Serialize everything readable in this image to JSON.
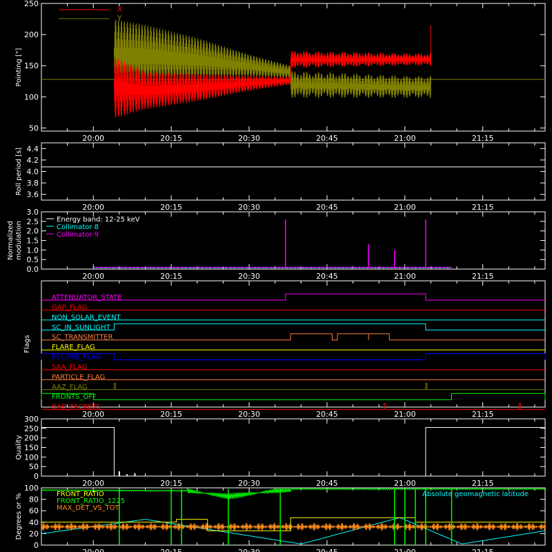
{
  "colors": {
    "background": "#000000",
    "axes": "#ffffff",
    "x_red": "#ff0000",
    "y_olive": "#808000",
    "white": "#ffffff",
    "cyan": "#00ffff",
    "magenta": "#ff00ff",
    "green": "#00ff00",
    "yellow": "#ffff00",
    "orange": "#ff8c1a",
    "blue": "#0000ff",
    "flag_orange": "#ff7f3f"
  },
  "time_axis": {
    "start": "19:50",
    "end": "21:27",
    "tick_labels": [
      "20:00",
      "20:15",
      "20:30",
      "20:45",
      "21:00",
      "21:15"
    ]
  },
  "chart_data": [
    {
      "type": "line",
      "ylabel": "Pointing [\"]",
      "ylim": [
        45,
        250
      ],
      "yticks": [
        "50",
        "100",
        "150",
        "200",
        "250"
      ],
      "legend_placement": "top-left",
      "series": [
        {
          "name": "X",
          "color": "#ff0000",
          "x": [
            "20:04",
            "20:10",
            "20:20",
            "20:30",
            "20:38",
            "20:38",
            "20:50",
            "21:00",
            "21:05"
          ],
          "center": [
            115,
            110,
            115,
            122,
            126,
            160,
            160,
            160,
            160
          ],
          "amplitude": [
            50,
            30,
            22,
            12,
            6,
            14,
            12,
            10,
            10
          ]
        },
        {
          "name": "Y",
          "color": "#808000",
          "x": [
            "20:04",
            "20:10",
            "20:20",
            "20:30",
            "20:38",
            "20:38",
            "20:50",
            "21:00",
            "21:05"
          ],
          "center": [
            165,
            166,
            160,
            150,
            140,
            120,
            118,
            116,
            116
          ],
          "amplitude": [
            60,
            50,
            35,
            18,
            10,
            22,
            20,
            18,
            18
          ]
        }
      ],
      "baseline": {
        "color": "#808000",
        "value": 128
      }
    },
    {
      "type": "line",
      "ylabel": "Roll period [s]",
      "ylim": [
        3.5,
        4.5
      ],
      "yticks": [
        "3.6",
        "3.8",
        "4.0",
        "4.2",
        "4.4"
      ],
      "series": [
        {
          "color": "#ffffff",
          "x": [
            "19:50",
            "21:27"
          ],
          "values": [
            4.08,
            4.08
          ]
        }
      ]
    },
    {
      "type": "line",
      "ylabel": "Normalized modulation",
      "ylim": [
        0,
        3
      ],
      "yticks": [
        "0.0",
        "0.5",
        "1.0",
        "1.5",
        "2.0",
        "2.5",
        "3.0"
      ],
      "legend": [
        "Energy band: 12-25 keV",
        "Collimator 8",
        "Collimator 9"
      ],
      "legend_colors": [
        "#ffffff",
        "#00ffff",
        "#ff00ff"
      ],
      "legend_placement": "top-left",
      "span": [
        "20:00",
        "21:09"
      ],
      "spikes": [
        {
          "x": "20:37",
          "value": 2.6
        },
        {
          "x": "20:53",
          "value": 1.3
        },
        {
          "x": "20:58",
          "value": 1.0
        },
        {
          "x": "21:04",
          "value": 2.6
        }
      ]
    },
    {
      "type": "line",
      "ylabel": "Flags",
      "flags": [
        {
          "label": "ATTENUATOR_STATE",
          "color": "#ff00ff",
          "high": [
            [
              "20:37",
              "21:04"
            ]
          ]
        },
        {
          "label": "GAP_FLAG",
          "color": "#ff0000",
          "high": []
        },
        {
          "label": "NON_SOLAR_EVENT",
          "color": "#00ffff",
          "high": []
        },
        {
          "label": "SC_IN_SUNLIGHT",
          "color": "#00ffff",
          "high": [
            [
              "20:04",
              "21:04"
            ]
          ]
        },
        {
          "label": "SC_TRANSMITTER",
          "color": "#ff7f3f",
          "high": [
            [
              "20:38",
              "20:46"
            ],
            [
              "20:47",
              "20:53"
            ],
            [
              "20:53",
              "20:57"
            ]
          ]
        },
        {
          "label": "FLARE_FLAG",
          "color": "#ffff00",
          "high": []
        },
        {
          "label": "ECLIPSE_FLAG",
          "color": "#0000ff",
          "high": [
            [
              "19:50",
              "20:04"
            ],
            [
              "21:04",
              "21:27"
            ]
          ]
        },
        {
          "label": "SAA_FLAG",
          "color": "#ff0000",
          "high": []
        },
        {
          "label": "PARTICLE_FLAG",
          "color": "#ff7f3f",
          "high": []
        },
        {
          "label": "AAZ_FLAG",
          "color": "#808000",
          "high": [
            [
              "20:04",
              "20:04"
            ],
            [
              "21:04",
              "21:04"
            ]
          ]
        },
        {
          "label": "FRONTS_OFF",
          "color": "#00ff00",
          "high": [
            [
              "19:50",
              "20:00"
            ],
            [
              "21:09",
              "21:27"
            ]
          ]
        },
        {
          "label": "BAD_PACKETS",
          "color": "#ff0000",
          "high": [
            [
              "20:56",
              "20:56"
            ],
            [
              "21:22",
              "21:22"
            ]
          ]
        }
      ]
    },
    {
      "type": "line",
      "ylabel": "Quality",
      "ylim": [
        0,
        300
      ],
      "yticks": [
        "0",
        "50",
        "100",
        "150",
        "200",
        "250",
        "300"
      ],
      "series": [
        {
          "color": "#ffffff",
          "x": [
            "19:50",
            "20:04",
            "20:04",
            "21:04",
            "21:04",
            "21:27"
          ],
          "values": [
            255,
            255,
            0,
            0,
            255,
            255
          ]
        }
      ]
    },
    {
      "type": "line",
      "ylabel": "Degrees or %",
      "ylim": [
        0,
        100
      ],
      "yticks": [
        "0",
        "20",
        "40",
        "60",
        "80",
        "100"
      ],
      "legend": [
        "FRONT_RATIO",
        "FRONT_RATIO_1225",
        "MAX_DET_VS_TOT"
      ],
      "legend_colors": [
        "#ffff00",
        "#00ff00",
        "#ff8c1a"
      ],
      "legend_placement": "top-left",
      "annotation": "Absolute geomagnetic latitude",
      "annotation_color": "#00ffff",
      "series": [
        {
          "name": "FRONT_RATIO",
          "color": "#ffff00",
          "x": [
            "19:50",
            "20:16",
            "20:16",
            "20:22",
            "20:22",
            "20:38",
            "20:38",
            "21:02",
            "21:02",
            "21:27"
          ],
          "values": [
            40,
            40,
            45,
            45,
            25,
            25,
            48,
            48,
            40,
            40
          ]
        },
        {
          "name": "FRONT_RATIO_1225",
          "color": "#00ff00",
          "x": [
            "19:50",
            "20:15",
            "20:18",
            "20:26",
            "20:38",
            "21:02",
            "21:09",
            "21:27"
          ],
          "values": [
            96,
            95,
            95,
            85,
            98,
            98,
            98,
            98
          ]
        },
        {
          "name": "MAX_DET_VS_TOT",
          "color": "#ff8c1a",
          "x": [
            "19:50",
            "21:27"
          ],
          "values": [
            32,
            32
          ]
        },
        {
          "name": "Absolute geomagnetic latitude",
          "color": "#00ffff",
          "x": [
            "19:50",
            "20:10",
            "20:40",
            "20:59",
            "21:11",
            "21:27"
          ],
          "values": [
            20,
            45,
            2,
            48,
            2,
            25
          ]
        }
      ]
    }
  ]
}
